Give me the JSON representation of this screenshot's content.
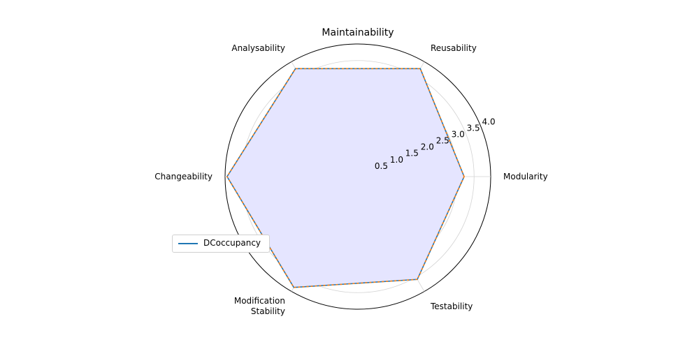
{
  "chart_data": {
    "type": "radar",
    "title": "Maintainability",
    "categories": [
      "Modularity",
      "Reusability",
      "Analysability",
      "Changeability",
      "Modification\nStability",
      "Testability"
    ],
    "radial_ticks": [
      "0.5",
      "1.0",
      "1.5",
      "2.0",
      "2.5",
      "3.0",
      "3.5",
      "4.0"
    ],
    "rlim": [
      0,
      4
    ],
    "series": [
      {
        "name": "DCoccupancy",
        "values": [
          3.2,
          3.76,
          3.76,
          3.94,
          3.86,
          3.58
        ],
        "color": "#1f77b4"
      }
    ],
    "overlay_dashed_color": "#ff7f0e",
    "fill_color": "#e5e5ff",
    "grid": true,
    "legend_position": "lower-left"
  }
}
